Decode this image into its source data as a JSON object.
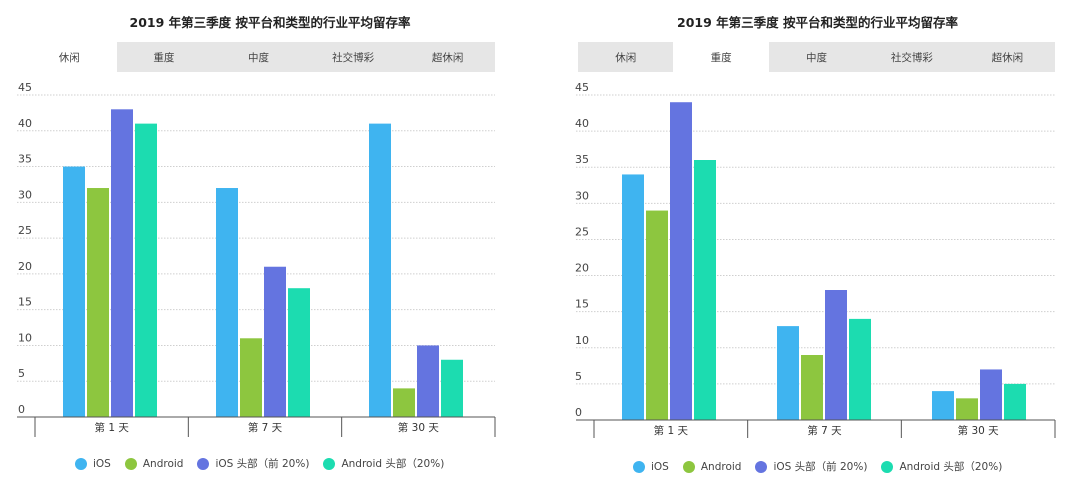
{
  "chart_data": [
    {
      "type": "bar",
      "title": "2019 年第三季度 按平台和类型的行业平均留存率",
      "tabs": [
        "休闲",
        "重度",
        "中度",
        "社交博彩",
        "超休闲"
      ],
      "active_tab": "休闲",
      "categories": [
        "第 1 天",
        "第 7 天",
        "第 30 天"
      ],
      "y_ticks": [
        "45",
        "40",
        "35",
        "30",
        "25",
        "20",
        "15",
        "10",
        "5",
        "0"
      ],
      "ylim": [
        0,
        45
      ],
      "grid": true,
      "legend_position": "bottom",
      "series": [
        {
          "name": "iOS",
          "color": "#3fb4f0",
          "values": [
            35,
            32,
            41
          ]
        },
        {
          "name": "Android",
          "color": "#8dc63f",
          "values": [
            32,
            11,
            4
          ]
        },
        {
          "name": "iOS 头部（前 20%)",
          "color": "#6474e0",
          "values": [
            43,
            21,
            10
          ]
        },
        {
          "name": "Android 头部（20%)",
          "color": "#1cdcb0",
          "values": [
            41,
            18,
            8
          ]
        }
      ]
    },
    {
      "type": "bar",
      "title": "2019 年第三季度 按平台和类型的行业平均留存率",
      "tabs": [
        "休闲",
        "重度",
        "中度",
        "社交博彩",
        "超休闲"
      ],
      "active_tab": "重度",
      "categories": [
        "第 1 天",
        "第 7 天",
        "第 30 天"
      ],
      "y_ticks": [
        "45",
        "40",
        "35",
        "30",
        "25",
        "20",
        "15",
        "10",
        "5",
        "0"
      ],
      "ylim": [
        0,
        45
      ],
      "grid": true,
      "legend_position": "bottom",
      "series": [
        {
          "name": "iOS",
          "color": "#3fb4f0",
          "values": [
            34,
            13,
            4
          ]
        },
        {
          "name": "Android",
          "color": "#8dc63f",
          "values": [
            29,
            9,
            3
          ]
        },
        {
          "name": "iOS 头部（前 20%)",
          "color": "#6474e0",
          "values": [
            44,
            18,
            7
          ]
        },
        {
          "name": "Android 头部（20%)",
          "color": "#1cdcb0",
          "values": [
            36,
            14,
            5
          ]
        }
      ]
    }
  ]
}
